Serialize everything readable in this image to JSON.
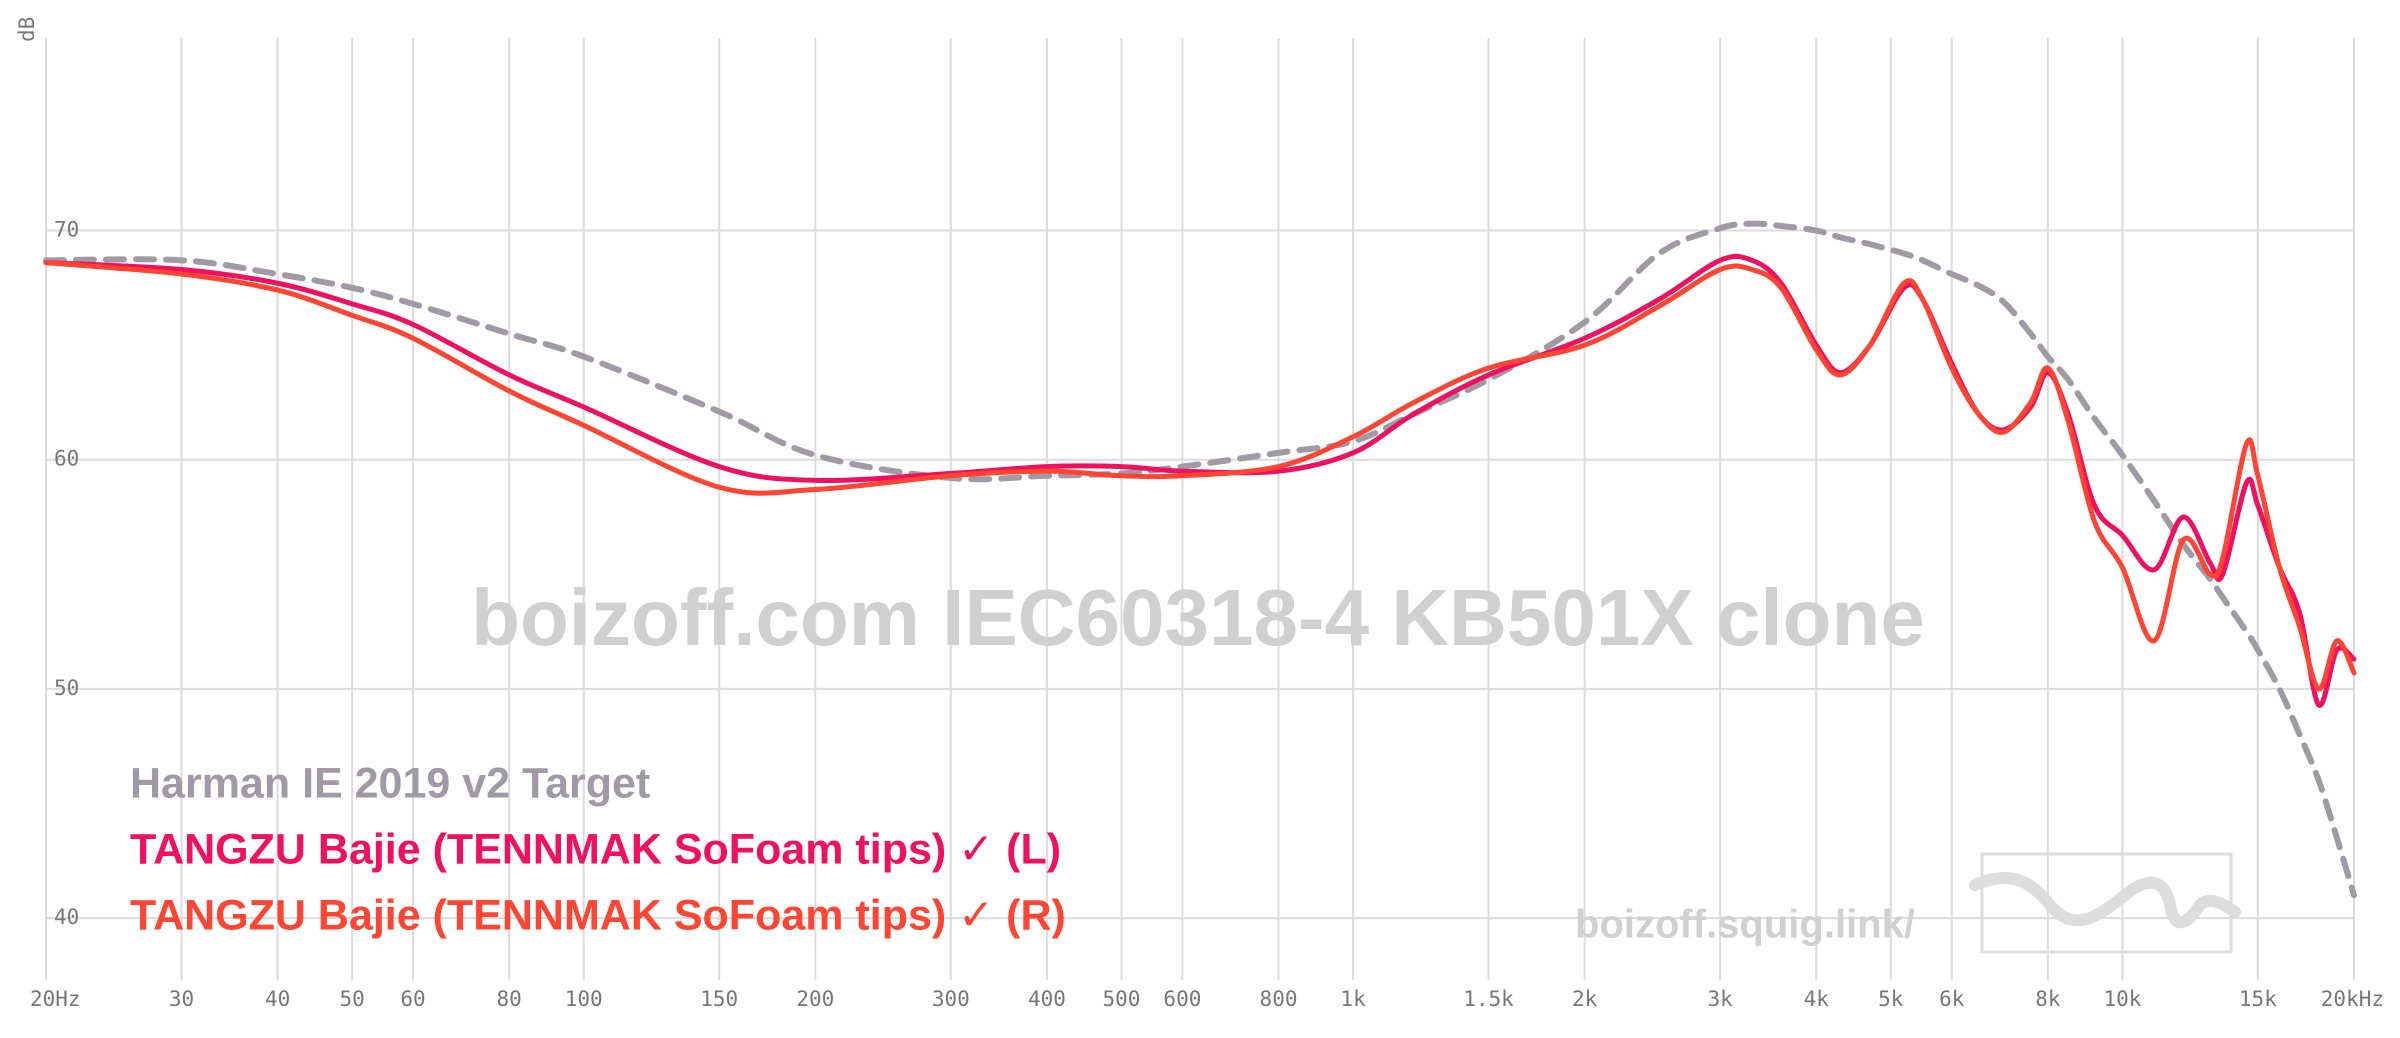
{
  "chart_data": {
    "type": "line",
    "ylabel": "dB",
    "watermark": "boizoff.com IEC60318-4 KB501X clone",
    "site": "boizoff.squig.link/",
    "log_x": true,
    "grid": true,
    "xlim": [
      20,
      20000
    ],
    "ylim": [
      37.3,
      78.4
    ],
    "xticks": [
      {
        "value": 20,
        "label": "20Hz"
      },
      30,
      40,
      50,
      60,
      80,
      100,
      150,
      200,
      300,
      400,
      500,
      600,
      800,
      {
        "value": 1000,
        "label": "1k"
      },
      {
        "value": 1500,
        "label": "1.5k"
      },
      {
        "value": 2000,
        "label": "2k"
      },
      {
        "value": 3000,
        "label": "3k"
      },
      {
        "value": 4000,
        "label": "4k"
      },
      {
        "value": 5000,
        "label": "5k"
      },
      {
        "value": 6000,
        "label": "6k"
      },
      {
        "value": 8000,
        "label": "8k"
      },
      {
        "value": 10000,
        "label": "10k"
      },
      {
        "value": 15000,
        "label": "15k"
      },
      {
        "value": 20000,
        "label": "20kHz"
      }
    ],
    "yticks": [
      40,
      50,
      60,
      70
    ],
    "x": [
      20,
      30,
      40,
      50,
      60,
      80,
      100,
      150,
      200,
      300,
      400,
      500,
      600,
      800,
      1000,
      1200,
      1500,
      2000,
      2500,
      3000,
      3300,
      3600,
      4000,
      4300,
      4700,
      5200,
      5500,
      6000,
      6500,
      7000,
      7600,
      8000,
      8500,
      9200,
      10000,
      11000,
      12000,
      13000,
      13500,
      14500,
      15000,
      16000,
      17000,
      18000,
      19000,
      20000
    ],
    "series": [
      {
        "name": "Harman IE 2019 v2 Target",
        "color": "#a09aa4",
        "dashed": true,
        "values": [
          68.7,
          68.7,
          68.1,
          67.5,
          66.8,
          65.5,
          64.5,
          62.1,
          60.2,
          59.2,
          59.3,
          59.4,
          59.7,
          60.3,
          60.8,
          62,
          63.5,
          66,
          69,
          70.1,
          70.3,
          70.2,
          70,
          69.7,
          69.4,
          69,
          68.7,
          68.1,
          67.6,
          66.9,
          65.5,
          64.5,
          63.5,
          61.8,
          60.2,
          58.2,
          56.3,
          54.8,
          54,
          52.5,
          51.7,
          50,
          48,
          46,
          43.5,
          41
        ]
      },
      {
        "name": "TANGZU Bajie (TENNMAK SoFoam tips) ✓ (L)",
        "color": "#f0105f",
        "values": [
          68.6,
          68.3,
          67.7,
          66.8,
          65.9,
          63.7,
          62.3,
          59.7,
          59.1,
          59.4,
          59.7,
          59.7,
          59.5,
          59.5,
          60.3,
          62,
          63.7,
          65.3,
          67,
          68.7,
          68.7,
          67.7,
          65,
          63.8,
          65,
          67.5,
          67,
          64.2,
          62,
          61.3,
          62.3,
          63.8,
          62,
          58,
          56.7,
          55.2,
          57.5,
          55.5,
          55,
          59,
          58,
          55.3,
          53.3,
          49.3,
          51.7,
          51.3
        ]
      },
      {
        "name": "TANGZU Bajie (TENNMAK SoFoam tips) ✓ (R)",
        "color": "#ff4433",
        "values": [
          68.6,
          68.1,
          67.4,
          66.3,
          65.3,
          63,
          61.5,
          58.8,
          58.7,
          59.3,
          59.5,
          59.3,
          59.3,
          59.7,
          61,
          62.5,
          64,
          65,
          66.7,
          68.3,
          68.3,
          67.5,
          64.8,
          63.7,
          65,
          67.7,
          67,
          64,
          62,
          61.2,
          62.5,
          64,
          61.7,
          57.3,
          55.3,
          52.1,
          56.5,
          55,
          55.7,
          60.7,
          59.3,
          55.3,
          52.7,
          50,
          52.1,
          50.7
        ]
      }
    ]
  }
}
